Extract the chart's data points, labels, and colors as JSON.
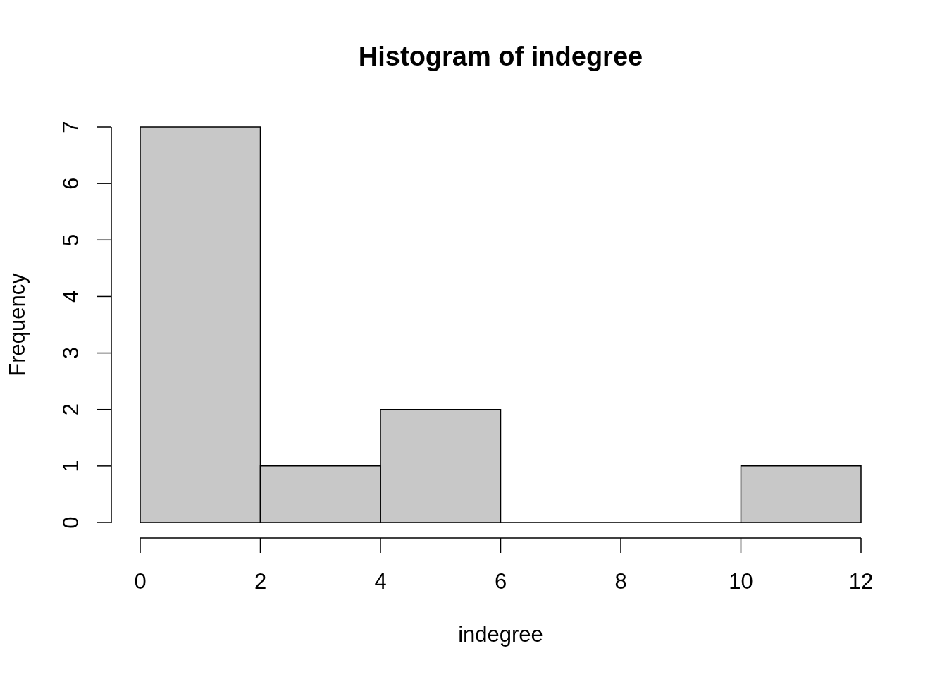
{
  "chart_data": {
    "type": "histogram",
    "title": "Histogram of indegree",
    "xlabel": "indegree",
    "ylabel": "Frequency",
    "bins": [
      0,
      2,
      4,
      6,
      8,
      10,
      12
    ],
    "values": [
      7,
      1,
      2,
      0,
      0,
      1
    ],
    "color": "#c8c8c8",
    "xlim": [
      0,
      12
    ],
    "ylim": [
      0,
      7
    ],
    "xticks": [
      0,
      2,
      4,
      6,
      8,
      10,
      12
    ],
    "yticks": [
      0,
      1,
      2,
      3,
      4,
      5,
      6,
      7
    ]
  }
}
